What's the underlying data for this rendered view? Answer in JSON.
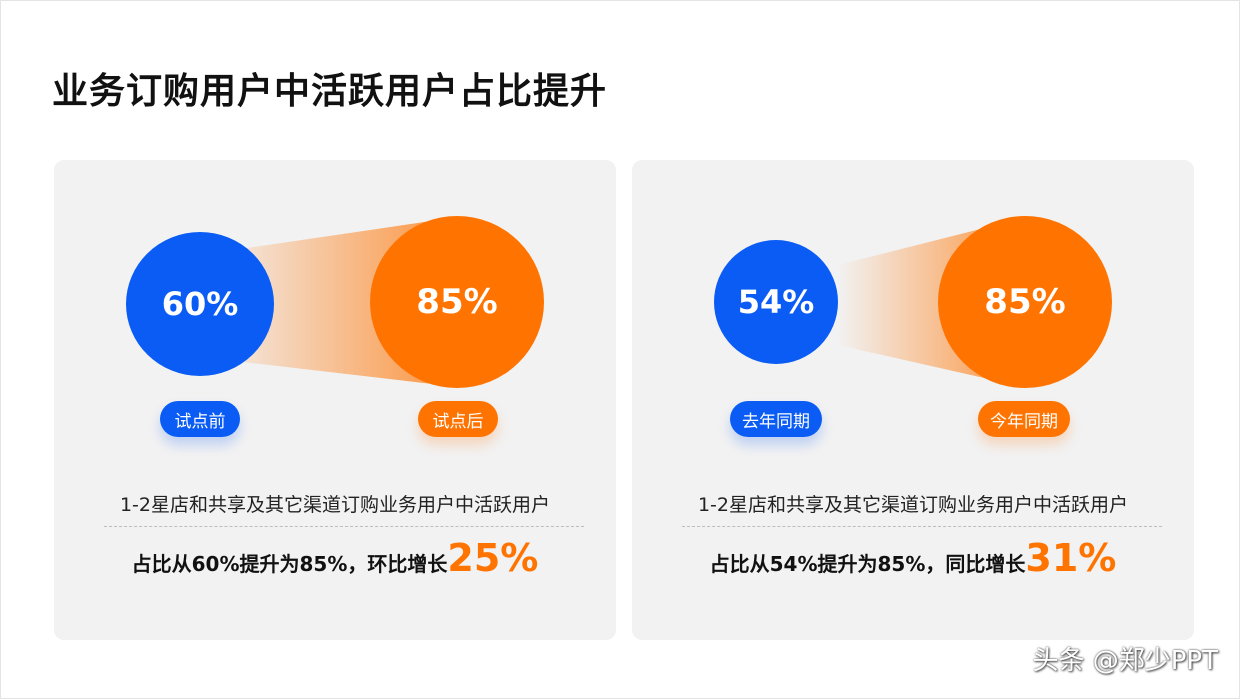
{
  "title": "业务订购用户中活跃用户占比提升",
  "colors": {
    "blue": "#0a5cf5",
    "orange": "#ff7300",
    "card": "#f2f2f2"
  },
  "cards": [
    {
      "before_value": "60%",
      "after_value": "85%",
      "before_label": "试点前",
      "after_label": "试点后",
      "description": "1-2星店和共享及其它渠道订购业务用户中活跃用户",
      "result_text": "占比从60%提升为85%，环比增长",
      "result_highlight": "25%"
    },
    {
      "before_value": "54%",
      "after_value": "85%",
      "before_label": "去年同期",
      "after_label": "今年同期",
      "description": "1-2星店和共享及其它渠道订购业务用户中活跃用户",
      "result_text": "占比从54%提升为85%，同比增长",
      "result_highlight": "31%"
    }
  ],
  "watermark": "头条 @郑少PPT"
}
